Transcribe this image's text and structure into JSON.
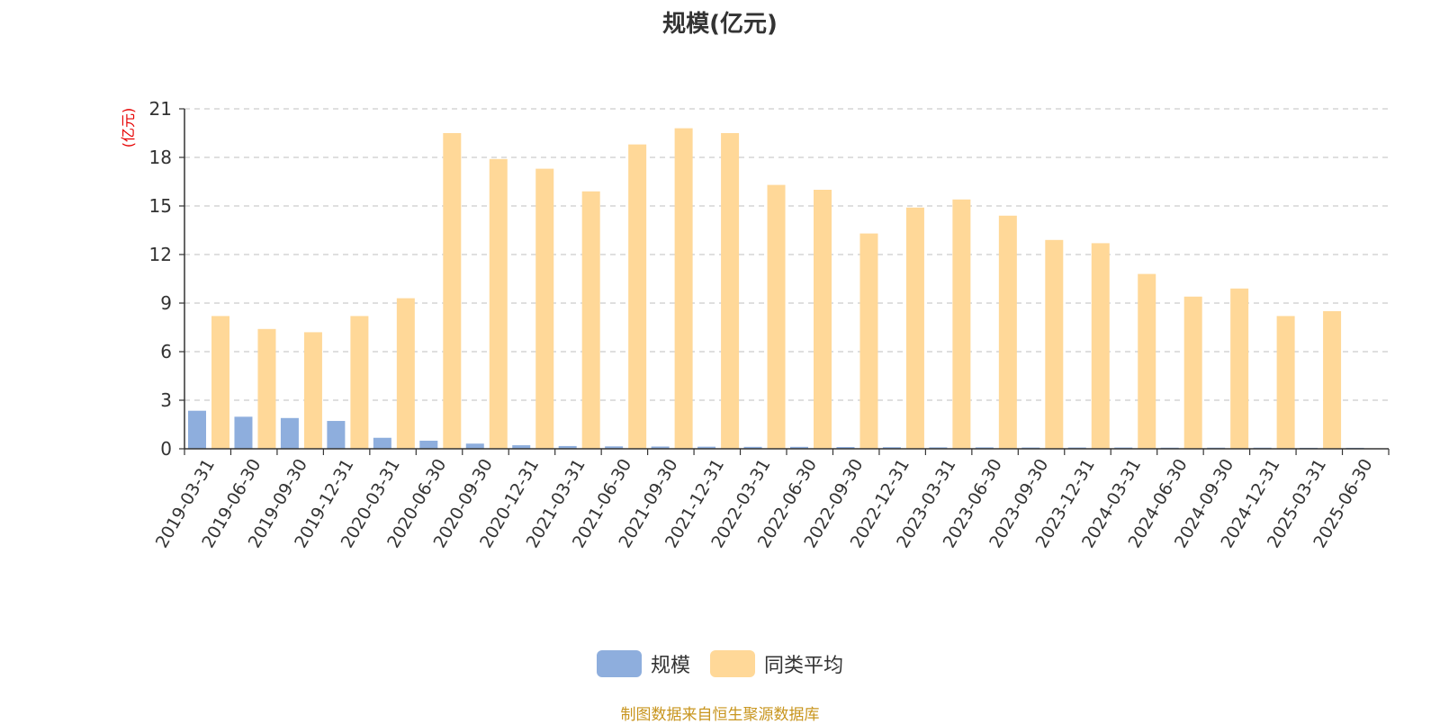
{
  "colors": {
    "series1": "#8eaedd",
    "series2": "#ffd898",
    "unit_label": "#e60000"
  },
  "chart_data": {
    "type": "bar",
    "title": "规模(亿元)",
    "ylabel": "(亿元)",
    "ylim": [
      0,
      21
    ],
    "yticks": [
      0,
      3,
      6,
      9,
      12,
      15,
      18,
      21
    ],
    "grid": true,
    "legend_position": "bottom",
    "categories": [
      "2019-03-31",
      "2019-06-30",
      "2019-09-30",
      "2019-12-31",
      "2020-03-31",
      "2020-06-30",
      "2020-09-30",
      "2020-12-31",
      "2021-03-31",
      "2021-06-30",
      "2021-09-30",
      "2021-12-31",
      "2022-03-31",
      "2022-06-30",
      "2022-09-30",
      "2022-12-31",
      "2023-03-31",
      "2023-06-30",
      "2023-09-30",
      "2023-12-31",
      "2024-03-31",
      "2024-06-30",
      "2024-09-30",
      "2024-12-31",
      "2025-03-31",
      "2025-06-30"
    ],
    "series": [
      {
        "name": "规模",
        "values": [
          2.35,
          1.98,
          1.9,
          1.72,
          0.68,
          0.5,
          0.32,
          0.22,
          0.17,
          0.15,
          0.14,
          0.13,
          0.12,
          0.12,
          0.11,
          0.1,
          0.09,
          0.09,
          0.08,
          0.08,
          0.08,
          0.07,
          0.07,
          0.07,
          0.06,
          0.06
        ]
      },
      {
        "name": "同类平均",
        "values": [
          8.2,
          7.4,
          7.2,
          8.2,
          9.3,
          19.5,
          17.9,
          17.3,
          15.9,
          18.8,
          19.8,
          19.5,
          16.3,
          16.0,
          13.3,
          14.9,
          15.4,
          14.4,
          12.9,
          12.7,
          10.8,
          9.4,
          9.9,
          8.2,
          8.5,
          null
        ]
      }
    ]
  },
  "source": "制图数据来自恒生聚源数据库"
}
